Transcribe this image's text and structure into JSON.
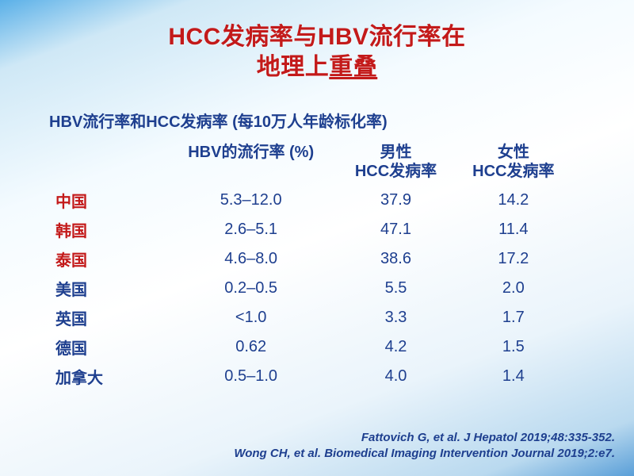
{
  "colors": {
    "title": "#c31a1a",
    "header": "#1e3f8f",
    "row_highlight": "#c31a1a",
    "row_normal": "#1e3f8f",
    "cell_text": "#1e3f8f",
    "citation": "#1e3f8f"
  },
  "fonts": {
    "title_size": 30,
    "subtitle_size": 20,
    "header_size": 20,
    "cell_size": 20,
    "citation_size": 15
  },
  "title_line1": "HCC发病率与HBV流行率在",
  "title_line2_prefix": "地理上",
  "title_line2_underlined": "重叠",
  "subtitle": "HBV流行率和HCC发病率 (每10万人年龄标化率)",
  "columns": [
    "",
    "HBV的流行率 (%)",
    "男性\nHCC发病率",
    "女性\nHCC发病率"
  ],
  "rows": [
    {
      "label": "中国",
      "highlight": true,
      "cells": [
        "5.3–12.0",
        "37.9",
        "14.2"
      ]
    },
    {
      "label": "韩国",
      "highlight": true,
      "cells": [
        "2.6–5.1",
        "47.1",
        "11.4"
      ]
    },
    {
      "label": "泰国",
      "highlight": true,
      "cells": [
        "4.6–8.0",
        "38.6",
        "17.2"
      ]
    },
    {
      "label": "美国",
      "highlight": false,
      "cells": [
        "0.2–0.5",
        "5.5",
        "2.0"
      ]
    },
    {
      "label": "英国",
      "highlight": false,
      "cells": [
        "<1.0",
        "3.3",
        "1.7"
      ]
    },
    {
      "label": "德国",
      "highlight": false,
      "cells": [
        "0.62",
        "4.2",
        "1.5"
      ]
    },
    {
      "label": "加拿大",
      "highlight": false,
      "cells": [
        "0.5–1.0",
        "4.0",
        "1.4"
      ]
    }
  ],
  "citation_line1": "Fattovich G, et al. J Hepatol 2019;48:335-352.",
  "citation_line2": "Wong CH, et al. Biomedical Imaging Intervention Journal 2019;2:e7."
}
